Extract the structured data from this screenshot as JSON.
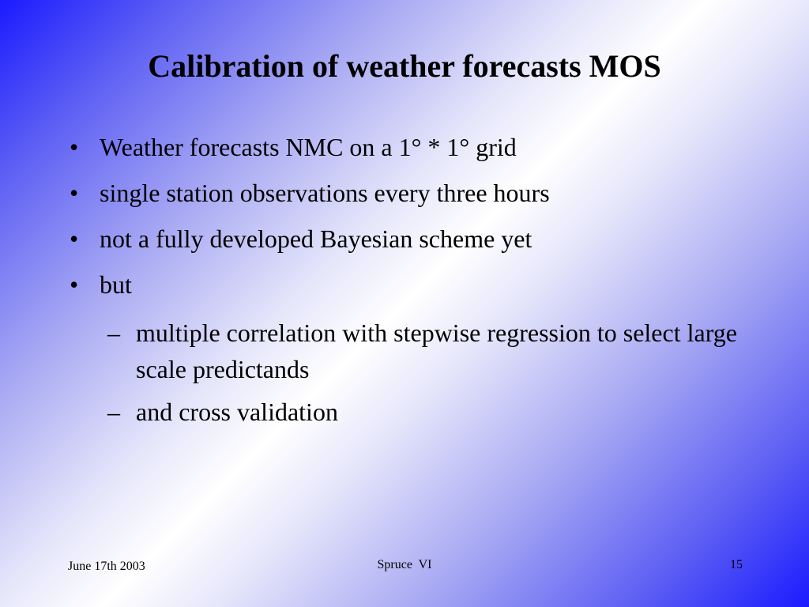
{
  "slide": {
    "title": "Calibration of weather forecasts MOS",
    "bullets": [
      {
        "marker": "•",
        "text": "Weather forecasts NMC on a 1° * 1° grid"
      },
      {
        "marker": "•",
        "text": "single station observations every three hours"
      },
      {
        "marker": "•",
        "text": "not a fully developed Bayesian scheme yet"
      },
      {
        "marker": "•",
        "text": "but"
      }
    ],
    "subbullets": [
      {
        "marker": "–",
        "text": "multiple correlation with stepwise regression to select large scale predictands"
      },
      {
        "marker": "–",
        "text": "and cross validation"
      }
    ],
    "footer": {
      "date": "June 17th 2003",
      "center": "Spruce  VI",
      "page": "15"
    }
  },
  "colors": {
    "background_edge": "#1a1aff",
    "background_center": "#ffffff",
    "text": "#000000"
  }
}
